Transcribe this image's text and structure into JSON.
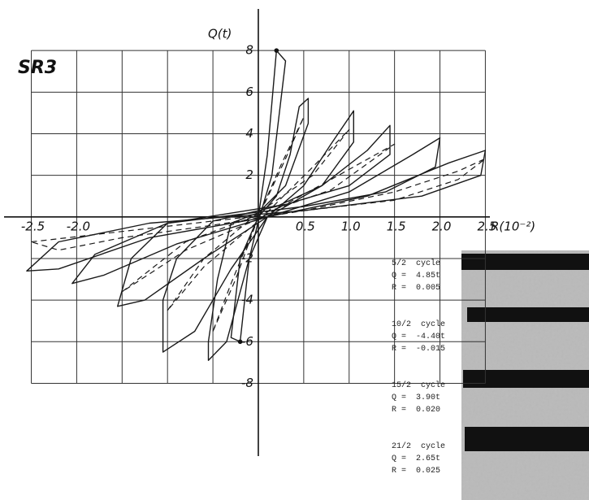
{
  "chart_data": {
    "type": "line",
    "panel_label": "SR3",
    "x_label": "R(10⁻²)",
    "y_label": "Q(t)",
    "xlim": [
      -2.8,
      2.55
    ],
    "ylim": [
      -11.5,
      10
    ],
    "grid": true,
    "xticks": [
      {
        "value": -2.5,
        "label": "-2.5"
      },
      {
        "value": -2,
        "label": "-2.0"
      },
      {
        "value": -1.5,
        "label": null
      },
      {
        "value": -1,
        "label": null
      },
      {
        "value": -0.5,
        "label": null
      },
      {
        "value": 0.5,
        "label": "0.5"
      },
      {
        "value": 1,
        "label": "1.0"
      },
      {
        "value": 1.5,
        "label": "1.5"
      },
      {
        "value": 2,
        "label": "2.0"
      },
      {
        "value": 2.5,
        "label": "2.5"
      }
    ],
    "yticks": [
      8,
      6,
      4,
      2,
      -2,
      -4,
      -6,
      -8
    ],
    "series": [
      {
        "color": "#1a1a1a",
        "dash": false,
        "x": [
          0,
          0.1,
          0.2,
          0.3,
          0.15,
          0,
          -0.1,
          -0.2,
          -0.3,
          -0.2,
          0
        ],
        "values": [
          0,
          3,
          8,
          7.5,
          2,
          -0.2,
          -2,
          -6,
          -5.8,
          -2,
          0
        ]
      },
      {
        "color": "#1a1a1a",
        "dash": false,
        "x": [
          0,
          0.2,
          0.35,
          0.45,
          0.55,
          0.55,
          0.3,
          0,
          -0.3,
          -0.45,
          -0.55,
          -0.55,
          -0.35,
          -0.1,
          0.1
        ],
        "values": [
          0,
          1,
          3,
          5.3,
          5.7,
          4.5,
          1.5,
          0.2,
          -0.3,
          -3,
          -6,
          -6.9,
          -6,
          -2,
          0
        ]
      },
      {
        "color": "#1a1a1a",
        "dash": false,
        "x": [
          0.1,
          0.5,
          0.8,
          1.05,
          1.05,
          0.7,
          0.2,
          -0.5,
          -0.9,
          -1.05,
          -1.05,
          -0.7,
          -0.3,
          0.1
        ],
        "values": [
          0,
          1.5,
          3.5,
          5.1,
          3.6,
          1.5,
          0.5,
          -0.2,
          -2,
          -4,
          -6.5,
          -5.5,
          -2.5,
          0
        ]
      },
      {
        "color": "#1a1a1a",
        "dash": false,
        "x": [
          0.1,
          0.7,
          1.2,
          1.45,
          1.45,
          1,
          0.3,
          -1,
          -1.4,
          -1.55,
          -1.25,
          -0.6,
          0.1
        ],
        "values": [
          0,
          1.5,
          3.2,
          4.4,
          3,
          1.5,
          0.6,
          -0.3,
          -2,
          -4.3,
          -4,
          -2,
          0
        ]
      },
      {
        "color": "#1a1a1a",
        "dash": false,
        "x": [
          0.1,
          1,
          1.7,
          2,
          1.95,
          1.4,
          0.5,
          -1,
          -1.8,
          -2.05,
          -1.7,
          -0.9,
          0.1
        ],
        "values": [
          0,
          1.2,
          3,
          3.8,
          2.4,
          1.2,
          0.5,
          -0.3,
          -1.8,
          -3.2,
          -2.8,
          -1.3,
          0
        ]
      },
      {
        "color": "#1a1a1a",
        "dash": false,
        "x": [
          0.1,
          1.2,
          2.1,
          2.5,
          2.45,
          1.8,
          0.5,
          -1.2,
          -2.2,
          -2.55,
          -2.2,
          -1.2,
          0.1
        ],
        "values": [
          0,
          1,
          2.6,
          3.2,
          2,
          1,
          0.3,
          -0.3,
          -1.2,
          -2.6,
          -2.5,
          -1,
          0
        ]
      },
      {
        "color": "#1a1a1a",
        "dash": true,
        "x": [
          -0.5,
          -0.25,
          0,
          0.25,
          0.5,
          0.3,
          0,
          -0.3,
          -0.5
        ],
        "values": [
          -5.5,
          -3,
          0,
          2.5,
          4.8,
          2.8,
          0,
          -3.2,
          -5.5
        ]
      },
      {
        "color": "#1a1a1a",
        "dash": true,
        "x": [
          -1,
          -0.6,
          0,
          0.6,
          1,
          0.6,
          0,
          -0.6,
          -1
        ],
        "values": [
          -4.5,
          -2,
          0.2,
          2,
          4.2,
          2.4,
          -0.2,
          -2.4,
          -4.5
        ]
      },
      {
        "color": "#1a1a1a",
        "dash": true,
        "x": [
          -1.5,
          -0.8,
          0,
          0.8,
          1.5,
          0.8,
          0,
          -0.8,
          -1.5
        ],
        "values": [
          -3.6,
          -1.2,
          0.1,
          1.3,
          3.5,
          1.8,
          -0.1,
          -1.6,
          -3.6
        ]
      },
      {
        "color": "#1a1a1a",
        "dash": true,
        "x": [
          -2.5,
          -1.5,
          -0.5,
          0.5,
          1.5,
          2.2,
          2.5,
          2.2,
          1.5,
          0.5,
          -0.5,
          -1.5,
          -2.2,
          -2.5
        ],
        "values": [
          -1.2,
          -0.7,
          -0.2,
          0.3,
          0.8,
          1.8,
          2.8,
          2.2,
          1.2,
          0.3,
          -0.4,
          -1,
          -1.6,
          -1.2
        ]
      }
    ],
    "points": {
      "x": [
        0.2,
        -0.2
      ],
      "values": [
        8,
        -6
      ]
    },
    "annotations": [
      {
        "cycle": "5/2  cycle",
        "q": "Q =  4.85t",
        "r": "R =  0.005"
      },
      {
        "cycle": "10/2  cycle",
        "q": "Q =  -4.40t",
        "r": "R =  -0.015"
      },
      {
        "cycle": "15/2  cycle",
        "q": "Q =  3.90t",
        "r": "R =  0.020"
      },
      {
        "cycle": "21/2  cycle",
        "q": "Q =  2.65t",
        "r": "R =  0.025"
      }
    ]
  }
}
